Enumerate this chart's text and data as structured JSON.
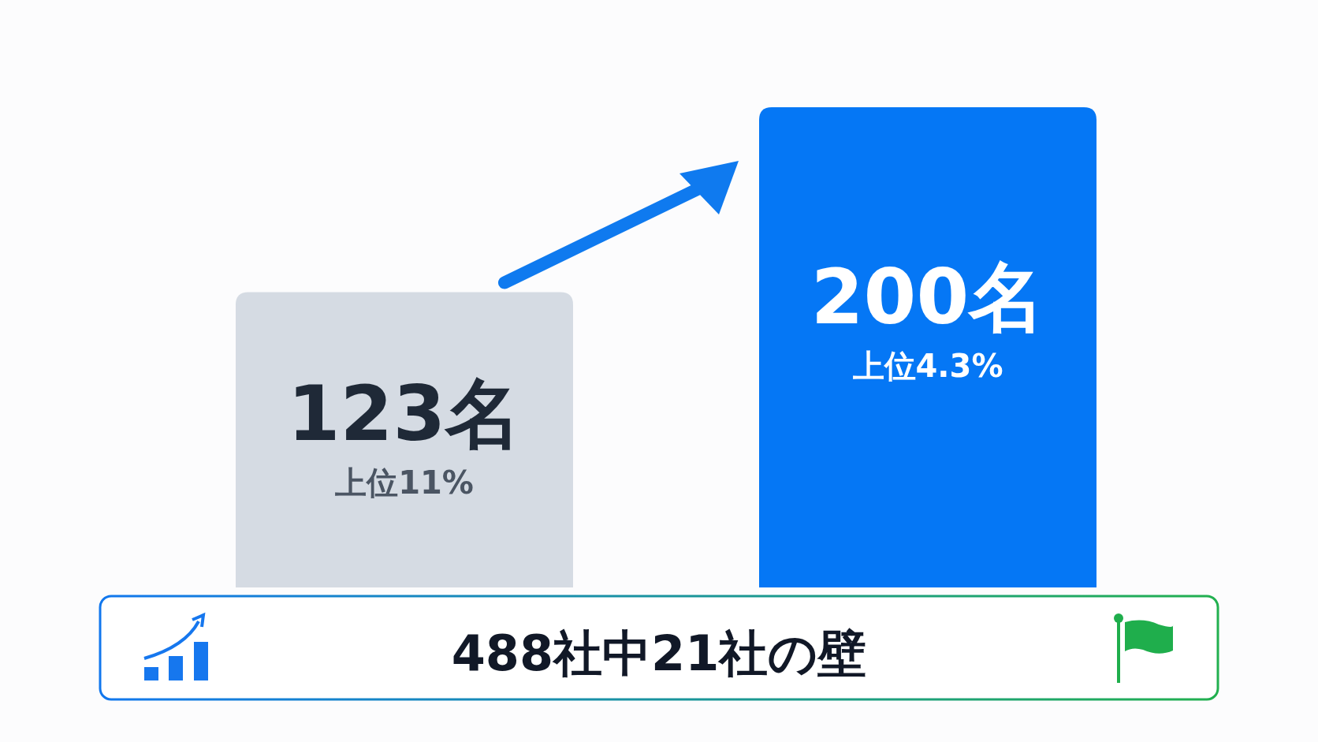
{
  "chart_data": {
    "type": "bar",
    "categories": [
      null,
      null
    ],
    "values": [
      123,
      200
    ],
    "colors": [
      "#d5dbe3",
      "#0577f5"
    ],
    "value_labels": [
      "123名",
      "200名"
    ],
    "annotations": [
      "上位11%",
      "上位4.3%",
      "488社中21社の壁"
    ]
  }
}
